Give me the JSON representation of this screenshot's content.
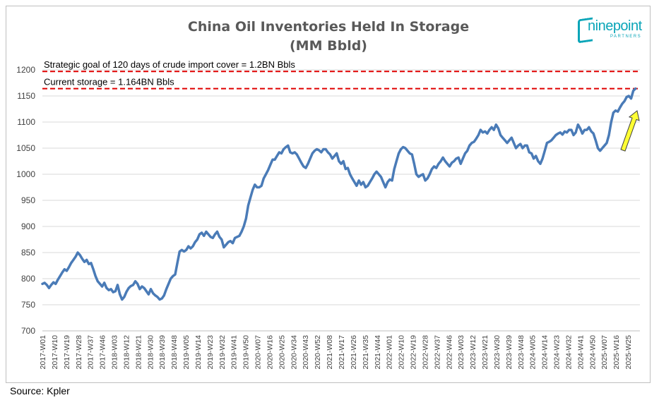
{
  "source": "Source: Kpler",
  "logo": {
    "word": "ninepoint",
    "sub": "PARTNERS"
  },
  "colors": {
    "line": "#4a7bb7",
    "dashed": "#e00000",
    "arrow_fill": "#ffff33",
    "arrow_stroke": "#404040"
  },
  "chart_data": {
    "type": "line",
    "title": [
      "China Oil Inventories Held In Storage",
      "(MM Bbld)"
    ],
    "xlabel": "",
    "ylabel": "",
    "ylim": [
      700,
      1200
    ],
    "yticks": [
      700,
      750,
      800,
      850,
      900,
      950,
      1000,
      1050,
      1100,
      1150,
      1200
    ],
    "grid": "horizontal",
    "legend": "none",
    "x_tick_labels": [
      "2017-W01",
      "2017-W10",
      "2017-W19",
      "2017-W28",
      "2017-W37",
      "2017-W46",
      "2018-W03",
      "2018-W12",
      "2018-W21",
      "2018-W30",
      "2018-W39",
      "2018-W48",
      "2019-W05",
      "2019-W14",
      "2019-W23",
      "2019-W32",
      "2019-W41",
      "2019-W50",
      "2020-W07",
      "2020-W16",
      "2020-W25",
      "2020-W34",
      "2020-W43",
      "2020-W52",
      "2021-W08",
      "2021-W17",
      "2021-W26",
      "2021-W35",
      "2021-W44",
      "2022-W01",
      "2022-W10",
      "2022-W19",
      "2022-W28",
      "2022-W37",
      "2022-W46",
      "2023-W03",
      "2023-W12",
      "2023-W21",
      "2023-W30",
      "2023-W39",
      "2023-W48",
      "2024-W05",
      "2024-W14",
      "2024-W23",
      "2024-W32",
      "2024-W41",
      "2024-W50",
      "2025-W07",
      "2025-W16",
      "2025-W25"
    ],
    "annotations": [
      {
        "text": "Strategic goal of 120 days of crude import cover = 1.2BN Bbls",
        "y": 1197
      },
      {
        "text": "Current storage = 1.164BN Bbls",
        "y": 1164
      }
    ],
    "series": [
      {
        "anchors": [
          [
            0,
            790
          ],
          [
            1,
            792
          ],
          [
            2,
            788
          ],
          [
            3,
            782
          ],
          [
            4,
            788
          ],
          [
            5,
            793
          ],
          [
            6,
            790
          ],
          [
            7,
            798
          ],
          [
            8,
            805
          ],
          [
            9,
            812
          ],
          [
            10,
            818
          ],
          [
            11,
            815
          ],
          [
            12,
            822
          ],
          [
            13,
            830
          ],
          [
            14,
            836
          ],
          [
            15,
            842
          ],
          [
            16,
            850
          ],
          [
            17,
            845
          ],
          [
            18,
            838
          ],
          [
            19,
            832
          ],
          [
            20,
            836
          ],
          [
            21,
            828
          ],
          [
            22,
            830
          ],
          [
            23,
            818
          ],
          [
            24,
            805
          ],
          [
            25,
            795
          ],
          [
            26,
            790
          ],
          [
            27,
            785
          ],
          [
            28,
            792
          ],
          [
            29,
            782
          ],
          [
            30,
            778
          ],
          [
            31,
            780
          ],
          [
            32,
            774
          ],
          [
            33,
            776
          ],
          [
            34,
            788
          ],
          [
            35,
            770
          ],
          [
            36,
            760
          ],
          [
            37,
            765
          ],
          [
            38,
            775
          ],
          [
            39,
            782
          ],
          [
            40,
            786
          ],
          [
            41,
            788
          ],
          [
            42,
            795
          ],
          [
            43,
            790
          ],
          [
            44,
            780
          ],
          [
            45,
            785
          ],
          [
            46,
            782
          ],
          [
            47,
            776
          ],
          [
            48,
            770
          ],
          [
            49,
            780
          ],
          [
            50,
            772
          ],
          [
            51,
            768
          ],
          [
            52,
            765
          ],
          [
            53,
            760
          ],
          [
            54,
            762
          ],
          [
            55,
            768
          ],
          [
            56,
            780
          ],
          [
            57,
            790
          ],
          [
            58,
            800
          ],
          [
            59,
            805
          ],
          [
            60,
            808
          ],
          [
            61,
            830
          ],
          [
            62,
            852
          ],
          [
            63,
            855
          ],
          [
            64,
            852
          ],
          [
            65,
            855
          ],
          [
            66,
            862
          ],
          [
            67,
            858
          ],
          [
            68,
            862
          ],
          [
            69,
            870
          ],
          [
            70,
            875
          ],
          [
            71,
            885
          ],
          [
            72,
            888
          ],
          [
            73,
            882
          ],
          [
            74,
            890
          ],
          [
            75,
            885
          ],
          [
            76,
            880
          ],
          [
            77,
            878
          ],
          [
            78,
            885
          ],
          [
            79,
            890
          ],
          [
            80,
            880
          ],
          [
            81,
            875
          ],
          [
            82,
            860
          ],
          [
            83,
            865
          ],
          [
            84,
            870
          ],
          [
            85,
            872
          ],
          [
            86,
            868
          ],
          [
            87,
            878
          ],
          [
            88,
            880
          ],
          [
            89,
            882
          ],
          [
            90,
            890
          ],
          [
            91,
            900
          ],
          [
            92,
            915
          ],
          [
            93,
            940
          ],
          [
            94,
            955
          ],
          [
            95,
            970
          ],
          [
            96,
            980
          ],
          [
            97,
            975
          ],
          [
            98,
            975
          ],
          [
            99,
            978
          ],
          [
            100,
            992
          ],
          [
            101,
            1000
          ],
          [
            102,
            1008
          ],
          [
            103,
            1018
          ],
          [
            104,
            1028
          ],
          [
            105,
            1028
          ],
          [
            106,
            1035
          ],
          [
            107,
            1042
          ],
          [
            108,
            1040
          ],
          [
            109,
            1048
          ],
          [
            110,
            1052
          ],
          [
            111,
            1055
          ],
          [
            112,
            1042
          ],
          [
            113,
            1040
          ],
          [
            114,
            1042
          ],
          [
            115,
            1038
          ],
          [
            116,
            1030
          ],
          [
            117,
            1022
          ],
          [
            118,
            1015
          ],
          [
            119,
            1012
          ],
          [
            120,
            1020
          ],
          [
            121,
            1030
          ],
          [
            122,
            1040
          ],
          [
            123,
            1045
          ],
          [
            124,
            1048
          ],
          [
            125,
            1046
          ],
          [
            126,
            1042
          ],
          [
            127,
            1048
          ],
          [
            128,
            1048
          ],
          [
            129,
            1042
          ],
          [
            130,
            1038
          ],
          [
            131,
            1030
          ],
          [
            132,
            1035
          ],
          [
            133,
            1040
          ],
          [
            134,
            1025
          ],
          [
            135,
            1020
          ],
          [
            136,
            1025
          ],
          [
            137,
            1010
          ],
          [
            138,
            1012
          ],
          [
            139,
            1000
          ],
          [
            140,
            992
          ],
          [
            141,
            985
          ],
          [
            142,
            978
          ],
          [
            143,
            988
          ],
          [
            144,
            980
          ],
          [
            145,
            985
          ],
          [
            146,
            975
          ],
          [
            147,
            978
          ],
          [
            148,
            985
          ],
          [
            149,
            992
          ],
          [
            150,
            1000
          ],
          [
            151,
            1005
          ],
          [
            152,
            1000
          ],
          [
            153,
            995
          ],
          [
            154,
            985
          ],
          [
            155,
            975
          ],
          [
            156,
            985
          ],
          [
            157,
            990
          ],
          [
            158,
            988
          ],
          [
            159,
            1010
          ],
          [
            160,
            1025
          ],
          [
            161,
            1040
          ],
          [
            162,
            1048
          ],
          [
            163,
            1052
          ],
          [
            164,
            1050
          ],
          [
            165,
            1045
          ],
          [
            166,
            1040
          ],
          [
            167,
            1038
          ],
          [
            168,
            1020
          ],
          [
            169,
            1000
          ],
          [
            170,
            995
          ],
          [
            171,
            998
          ],
          [
            172,
            1000
          ],
          [
            173,
            988
          ],
          [
            174,
            992
          ],
          [
            175,
            1000
          ],
          [
            176,
            1010
          ],
          [
            177,
            1015
          ],
          [
            178,
            1012
          ],
          [
            179,
            1020
          ],
          [
            180,
            1025
          ],
          [
            181,
            1032
          ],
          [
            182,
            1025
          ],
          [
            183,
            1020
          ],
          [
            184,
            1015
          ],
          [
            185,
            1022
          ],
          [
            186,
            1025
          ],
          [
            187,
            1030
          ],
          [
            188,
            1032
          ],
          [
            189,
            1020
          ],
          [
            190,
            1030
          ],
          [
            191,
            1040
          ],
          [
            192,
            1045
          ],
          [
            193,
            1055
          ],
          [
            194,
            1060
          ],
          [
            195,
            1062
          ],
          [
            196,
            1068
          ],
          [
            197,
            1075
          ],
          [
            198,
            1085
          ],
          [
            199,
            1080
          ],
          [
            200,
            1082
          ],
          [
            201,
            1078
          ],
          [
            202,
            1085
          ],
          [
            203,
            1090
          ],
          [
            204,
            1085
          ],
          [
            205,
            1095
          ],
          [
            206,
            1088
          ],
          [
            207,
            1075
          ],
          [
            208,
            1070
          ],
          [
            209,
            1065
          ],
          [
            210,
            1060
          ],
          [
            211,
            1065
          ],
          [
            212,
            1070
          ],
          [
            213,
            1060
          ],
          [
            214,
            1050
          ],
          [
            215,
            1055
          ],
          [
            216,
            1058
          ],
          [
            217,
            1050
          ],
          [
            218,
            1055
          ],
          [
            219,
            1055
          ],
          [
            220,
            1042
          ],
          [
            221,
            1040
          ],
          [
            222,
            1030
          ],
          [
            223,
            1035
          ],
          [
            224,
            1025
          ],
          [
            225,
            1020
          ],
          [
            226,
            1030
          ],
          [
            227,
            1045
          ],
          [
            228,
            1060
          ],
          [
            229,
            1062
          ],
          [
            230,
            1065
          ],
          [
            231,
            1070
          ],
          [
            232,
            1075
          ],
          [
            233,
            1078
          ],
          [
            234,
            1080
          ],
          [
            235,
            1076
          ],
          [
            236,
            1082
          ],
          [
            237,
            1080
          ],
          [
            238,
            1085
          ],
          [
            239,
            1085
          ],
          [
            240,
            1075
          ],
          [
            241,
            1080
          ],
          [
            242,
            1095
          ],
          [
            243,
            1088
          ],
          [
            244,
            1078
          ],
          [
            245,
            1085
          ],
          [
            246,
            1085
          ],
          [
            247,
            1090
          ],
          [
            248,
            1082
          ],
          [
            249,
            1078
          ],
          [
            250,
            1065
          ],
          [
            251,
            1050
          ],
          [
            252,
            1045
          ],
          [
            253,
            1050
          ],
          [
            254,
            1055
          ],
          [
            255,
            1060
          ],
          [
            256,
            1075
          ],
          [
            257,
            1100
          ],
          [
            258,
            1118
          ],
          [
            259,
            1122
          ],
          [
            260,
            1120
          ],
          [
            261,
            1128
          ],
          [
            262,
            1135
          ],
          [
            263,
            1140
          ],
          [
            264,
            1148
          ],
          [
            265,
            1150
          ],
          [
            266,
            1145
          ],
          [
            267,
            1160
          ],
          [
            268,
            1164
          ]
        ]
      }
    ]
  }
}
